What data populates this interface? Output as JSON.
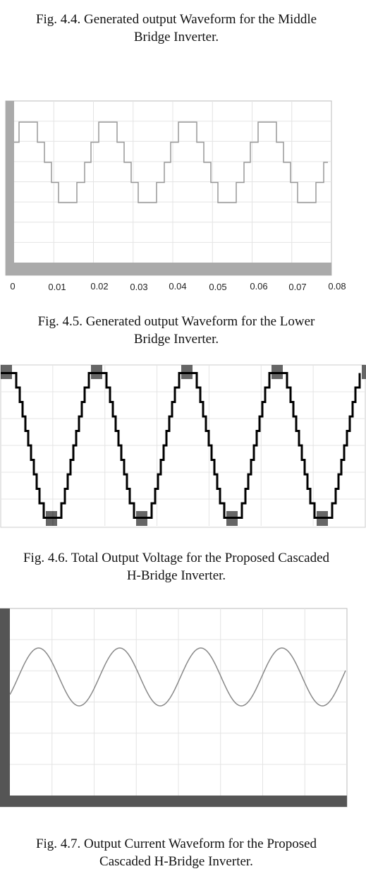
{
  "figures": [
    {
      "caption": [
        "Fig. 4.4. Generated output Waveform for the Middle",
        "Bridge Inverter."
      ],
      "x_labels": [
        "0",
        "0.01",
        "0.02",
        "0.03",
        "0.04",
        "0.05",
        "0.06",
        "0.07",
        "0.08"
      ]
    },
    {
      "caption": [
        "Fig. 4.5. Generated output Waveform for the Lower",
        "Bridge Inverter."
      ]
    },
    {
      "caption": [
        "Fig. 4.6. Total Output Voltage for the Proposed Cascaded",
        "H-Bridge Inverter."
      ]
    },
    {
      "caption": [
        "Fig. 4.7. Output Current Waveform for the Proposed",
        "Cascaded H-Bridge Inverter."
      ]
    }
  ]
}
